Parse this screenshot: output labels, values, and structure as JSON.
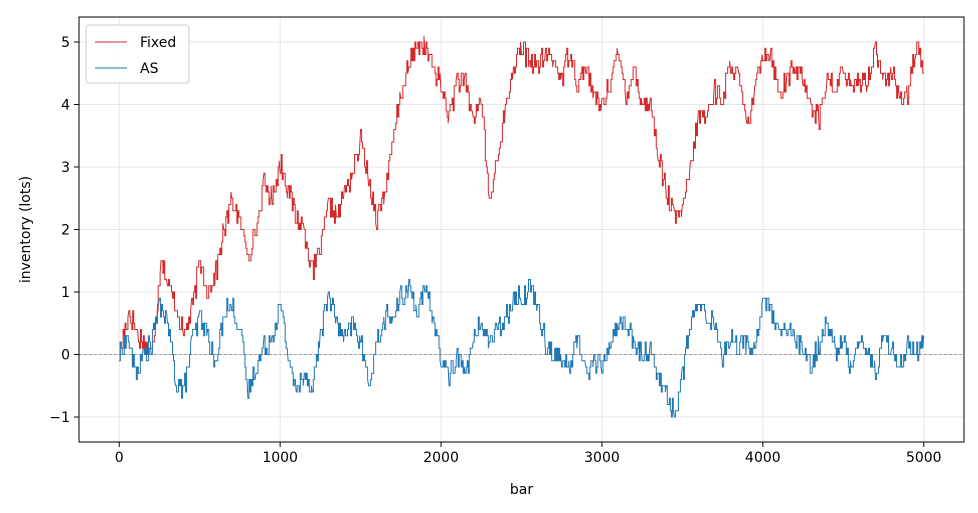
{
  "chart_data": {
    "type": "line",
    "title": "",
    "xlabel": "bar",
    "ylabel": "inventory (lots)",
    "xlim": [
      -250,
      5250
    ],
    "ylim": [
      -1.4,
      5.4
    ],
    "x_ticks": [
      0,
      1000,
      2000,
      3000,
      4000,
      5000
    ],
    "x_tick_labels": [
      "0",
      "1000",
      "2000",
      "3000",
      "4000",
      "5000"
    ],
    "y_ticks": [
      -1,
      0,
      1,
      2,
      3,
      4,
      5
    ],
    "y_tick_labels": [
      "−1",
      "0",
      "1",
      "2",
      "3",
      "4",
      "5"
    ],
    "grid": true,
    "legend_position": "upper-left",
    "reference_line": {
      "y": 0,
      "style": "dashed",
      "color": "#888888"
    },
    "series": [
      {
        "name": "Fixed",
        "color": "#d62728",
        "x": [
          0,
          60,
          120,
          180,
          200,
          230,
          260,
          300,
          350,
          400,
          450,
          500,
          550,
          600,
          650,
          700,
          750,
          800,
          850,
          900,
          950,
          1000,
          1050,
          1100,
          1150,
          1200,
          1250,
          1300,
          1350,
          1400,
          1450,
          1500,
          1550,
          1600,
          1650,
          1700,
          1750,
          1800,
          1850,
          1900,
          1950,
          2000,
          2050,
          2100,
          2150,
          2200,
          2250,
          2300,
          2350,
          2400,
          2450,
          2500,
          2550,
          2600,
          2650,
          2700,
          2750,
          2800,
          2850,
          2900,
          2950,
          3000,
          3050,
          3100,
          3150,
          3200,
          3250,
          3300,
          3350,
          3400,
          3450,
          3500,
          3550,
          3600,
          3650,
          3700,
          3750,
          3800,
          3850,
          3900,
          3950,
          4000,
          4050,
          4100,
          4150,
          4200,
          4250,
          4300,
          4350,
          4400,
          4450,
          4500,
          4550,
          4600,
          4650,
          4700,
          4750,
          4800,
          4850,
          4900,
          4950,
          5000
        ],
        "values": [
          0.0,
          0.7,
          0.3,
          0.1,
          0.0,
          0.7,
          1.6,
          1.1,
          0.8,
          0.3,
          0.7,
          1.5,
          1.0,
          1.3,
          2.0,
          2.5,
          2.1,
          1.6,
          2.0,
          2.7,
          2.5,
          3.1,
          2.6,
          2.2,
          2.0,
          1.3,
          1.7,
          2.4,
          2.2,
          2.6,
          2.9,
          3.4,
          2.8,
          2.2,
          2.6,
          3.4,
          4.2,
          4.6,
          5.0,
          4.9,
          4.6,
          4.3,
          3.8,
          4.4,
          4.3,
          3.8,
          4.1,
          2.4,
          3.2,
          3.9,
          4.6,
          4.9,
          4.7,
          4.6,
          4.8,
          4.7,
          4.4,
          4.9,
          4.3,
          4.6,
          4.1,
          4.0,
          4.4,
          4.8,
          4.2,
          4.6,
          4.0,
          4.0,
          3.2,
          2.6,
          2.2,
          2.3,
          3.0,
          3.8,
          3.8,
          4.2,
          4.1,
          4.7,
          4.4,
          3.6,
          4.2,
          4.9,
          4.8,
          4.2,
          4.4,
          4.6,
          4.4,
          4.0,
          3.8,
          4.4,
          4.2,
          4.6,
          4.2,
          4.4,
          4.4,
          4.9,
          4.4,
          4.5,
          4.1,
          4.2,
          4.9,
          4.5
        ]
      },
      {
        "name": "AS",
        "color": "#1f77b4",
        "x": [
          0,
          50,
          100,
          150,
          200,
          250,
          300,
          350,
          400,
          450,
          500,
          550,
          600,
          650,
          700,
          750,
          800,
          850,
          900,
          950,
          1000,
          1050,
          1100,
          1150,
          1200,
          1250,
          1300,
          1350,
          1400,
          1450,
          1500,
          1550,
          1600,
          1650,
          1700,
          1750,
          1800,
          1850,
          1900,
          1950,
          2000,
          2050,
          2100,
          2150,
          2200,
          2250,
          2300,
          2350,
          2400,
          2450,
          2500,
          2550,
          2600,
          2650,
          2700,
          2750,
          2800,
          2850,
          2900,
          2950,
          3000,
          3050,
          3100,
          3150,
          3200,
          3250,
          3300,
          3350,
          3400,
          3450,
          3500,
          3550,
          3600,
          3650,
          3700,
          3750,
          3800,
          3850,
          3900,
          3950,
          4000,
          4050,
          4100,
          4150,
          4200,
          4250,
          4300,
          4350,
          4400,
          4450,
          4500,
          4550,
          4600,
          4650,
          4700,
          4750,
          4800,
          4850,
          4900,
          4950,
          5000
        ],
        "values": [
          0.0,
          0.3,
          -0.3,
          0.0,
          0.2,
          0.8,
          0.5,
          -0.4,
          -0.6,
          0.2,
          0.6,
          0.3,
          -0.2,
          0.7,
          0.8,
          0.4,
          -0.6,
          -0.2,
          0.1,
          0.3,
          0.8,
          0.0,
          -0.6,
          -0.3,
          -0.5,
          0.3,
          1.0,
          0.5,
          0.2,
          0.5,
          0.2,
          -0.5,
          0.2,
          0.6,
          0.6,
          0.9,
          1.1,
          0.7,
          1.0,
          0.6,
          -0.1,
          -0.3,
          0.0,
          -0.3,
          0.2,
          0.5,
          0.2,
          0.4,
          0.6,
          0.9,
          0.9,
          1.1,
          0.8,
          0.2,
          0.0,
          -0.1,
          -0.2,
          0.3,
          -0.3,
          -0.1,
          -0.2,
          0.2,
          0.5,
          0.5,
          0.1,
          0.0,
          0.1,
          -0.4,
          -0.6,
          -1.0,
          -0.3,
          0.5,
          0.8,
          0.6,
          0.5,
          0.0,
          0.3,
          0.1,
          0.2,
          0.1,
          0.9,
          0.7,
          0.3,
          0.4,
          0.3,
          0.0,
          -0.2,
          0.2,
          0.5,
          0.1,
          0.2,
          -0.2,
          0.3,
          0.0,
          -0.3,
          0.3,
          0.1,
          -0.2,
          0.2,
          0.0,
          0.3
        ]
      }
    ]
  }
}
